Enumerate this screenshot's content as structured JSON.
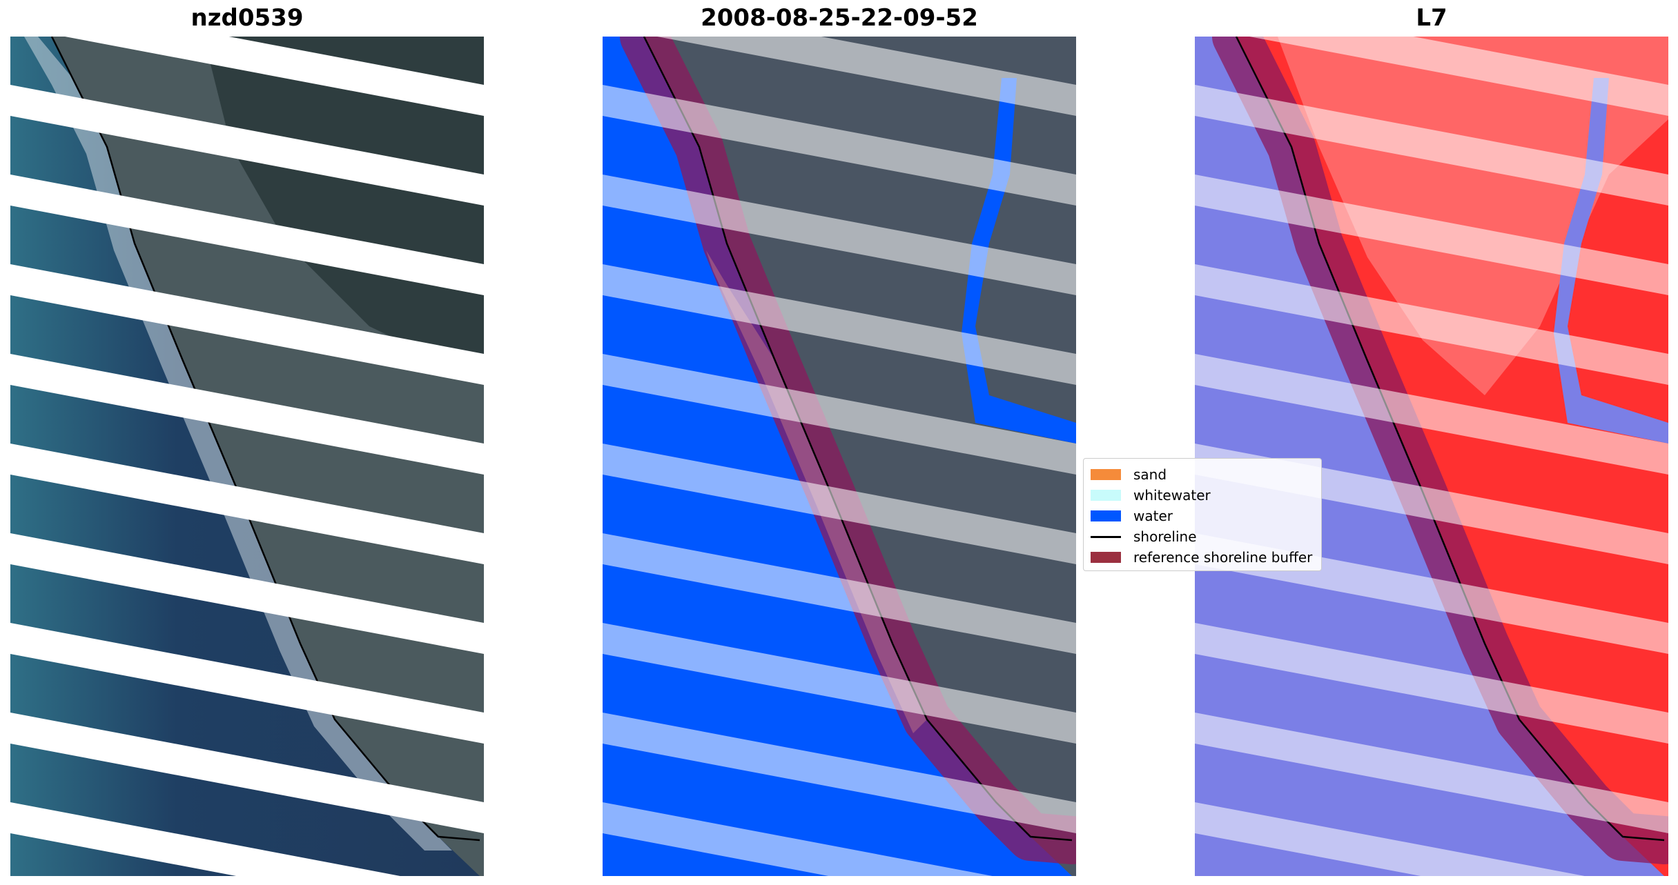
{
  "panels": [
    {
      "title": "nzd0539"
    },
    {
      "title": "2008-08-25-22-09-52"
    },
    {
      "title": "L7"
    }
  ],
  "legend": {
    "items": [
      {
        "label": "sand",
        "color": "#f58b3a",
        "kind": "patch"
      },
      {
        "label": "whitewater",
        "color": "#c8fbfb",
        "kind": "patch"
      },
      {
        "label": "water",
        "color": "#0057ff",
        "kind": "patch"
      },
      {
        "label": "shoreline",
        "color": "#000000",
        "kind": "line"
      },
      {
        "label": "reference shoreline buffer",
        "color": "#9b3040",
        "kind": "patch"
      }
    ]
  },
  "colors": {
    "water": "#0057ff",
    "whitewater": "#c8fbfb",
    "land": "#4a5563",
    "sea_rgb": "#284a6e",
    "buffer": "#8b1a5c",
    "index_water": "#7b7fe6",
    "index_land": "#ff3030"
  }
}
